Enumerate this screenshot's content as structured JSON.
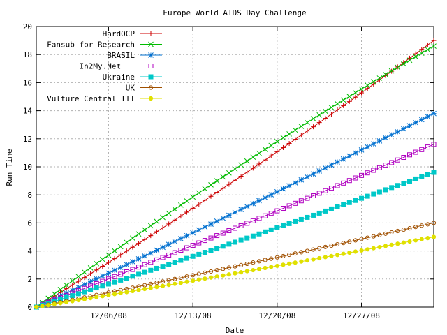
{
  "chart_data": {
    "type": "line",
    "title": "Europe World AIDS Day Challenge",
    "xlabel": "Date",
    "ylabel": "Run Time",
    "ylim": [
      0,
      20
    ],
    "yticks": [
      0,
      2,
      4,
      6,
      8,
      10,
      12,
      14,
      16,
      18,
      20
    ],
    "xlim": [
      "2008-11-30",
      "2009-01-02"
    ],
    "xticks": [
      {
        "date": "2008-12-06",
        "label": "12/06/08"
      },
      {
        "date": "2008-12-13",
        "label": "12/13/08"
      },
      {
        "date": "2008-12-20",
        "label": "12/20/08"
      },
      {
        "date": "2008-12-27",
        "label": "12/27/08"
      }
    ],
    "grid": true,
    "legend_position": "top-left",
    "series": [
      {
        "name": "HardOCP",
        "color": "#cc0000",
        "marker": "plus",
        "end_date": "2009-01-02",
        "end_value": 19.0,
        "start_slope": 0.52,
        "end_slope": 0.68
      },
      {
        "name": "Fansub for Research",
        "color": "#00bb00",
        "marker": "x",
        "end_date": "2009-01-02",
        "end_value": 18.6,
        "start_slope": 0.63,
        "end_slope": 0.5
      },
      {
        "name": "BRASIL",
        "color": "#0070d0",
        "marker": "star",
        "end_date": "2009-01-02",
        "end_value": 13.8,
        "start_slope": 0.4,
        "end_slope": 0.44
      },
      {
        "name": "___In2My.Net___",
        "color": "#b000c0",
        "marker": "box",
        "end_date": "2009-01-02",
        "end_value": 11.6,
        "start_slope": 0.33,
        "end_slope": 0.37
      },
      {
        "name": "Ukraine",
        "color": "#00c8c8",
        "marker": "filledbox",
        "end_date": "2009-01-02",
        "end_value": 9.6,
        "start_slope": 0.27,
        "end_slope": 0.31
      },
      {
        "name": "UK",
        "color": "#a05000",
        "marker": "circle",
        "end_date": "2009-01-02",
        "end_value": 6.0,
        "start_slope": 0.17,
        "end_slope": 0.19
      },
      {
        "name": "Vulture Central III",
        "color": "#e0e000",
        "marker": "filledcircle",
        "end_date": "2009-01-02",
        "end_value": 5.0,
        "start_slope": 0.14,
        "end_slope": 0.16
      }
    ]
  }
}
